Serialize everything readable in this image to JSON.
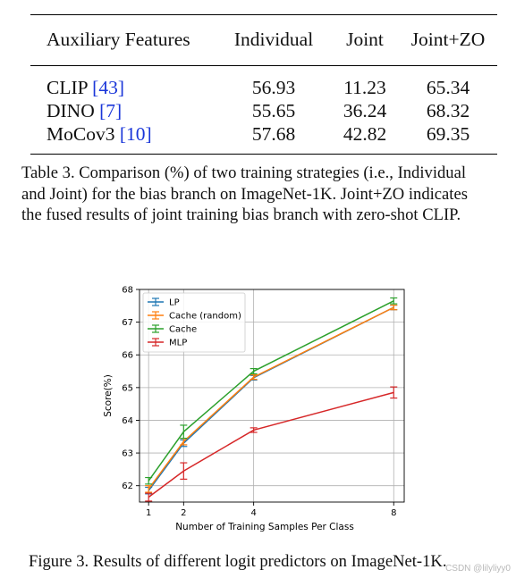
{
  "table": {
    "headers": [
      "Auxiliary Features",
      "Individual",
      "Joint",
      "Joint+ZO"
    ],
    "rows": [
      {
        "name": "CLIP ",
        "cite": "[43]",
        "values": [
          "56.93",
          "11.23",
          "65.34"
        ]
      },
      {
        "name": "DINO ",
        "cite": "[7]",
        "values": [
          "55.65",
          "36.24",
          "68.32"
        ]
      },
      {
        "name": "MoCov3 ",
        "cite": "[10]",
        "values": [
          "57.68",
          "42.82",
          "69.35"
        ]
      }
    ],
    "caption_lines": [
      "Table 3. Comparison (%) of two training strategies (i.e., Individual",
      "and Joint) for the bias branch on ImageNet-1K. Joint+ZO indicates",
      "the fused results of joint training bias branch with zero-shot CLIP."
    ]
  },
  "figure": {
    "caption": "Figure 3. Results of different logit predictors on ImageNet-1K."
  },
  "watermark": "CSDN @lilyliyy0",
  "chart_data": {
    "type": "line",
    "title": "",
    "xlabel": "Number of Training Samples Per Class",
    "ylabel": "Score(%)",
    "x": [
      1,
      2,
      4,
      8
    ],
    "xticks": [
      1,
      2,
      4,
      8
    ],
    "yticks": [
      62,
      63,
      64,
      65,
      66,
      67,
      68
    ],
    "xlim": [
      0.74,
      8.3
    ],
    "ylim": [
      61.5,
      68
    ],
    "grid": true,
    "legend_position": "top-left",
    "series": [
      {
        "name": "LP",
        "color": "#1f77b4",
        "values": [
          61.85,
          63.3,
          65.3,
          67.45
        ],
        "errors": [
          0.1,
          0.1,
          0.07,
          0.07
        ]
      },
      {
        "name": "Cache (random)",
        "color": "#ff7f0e",
        "values": [
          61.9,
          63.35,
          65.32,
          67.45
        ],
        "errors": [
          0.1,
          0.1,
          0.07,
          0.07
        ]
      },
      {
        "name": "Cache",
        "color": "#2ca02c",
        "values": [
          62.15,
          63.65,
          65.5,
          67.65
        ],
        "errors": [
          0.1,
          0.2,
          0.08,
          0.09
        ]
      },
      {
        "name": "MLP",
        "color": "#d62728",
        "values": [
          61.65,
          62.45,
          63.7,
          64.85
        ],
        "errors": [
          0.12,
          0.25,
          0.07,
          0.17
        ]
      }
    ]
  }
}
